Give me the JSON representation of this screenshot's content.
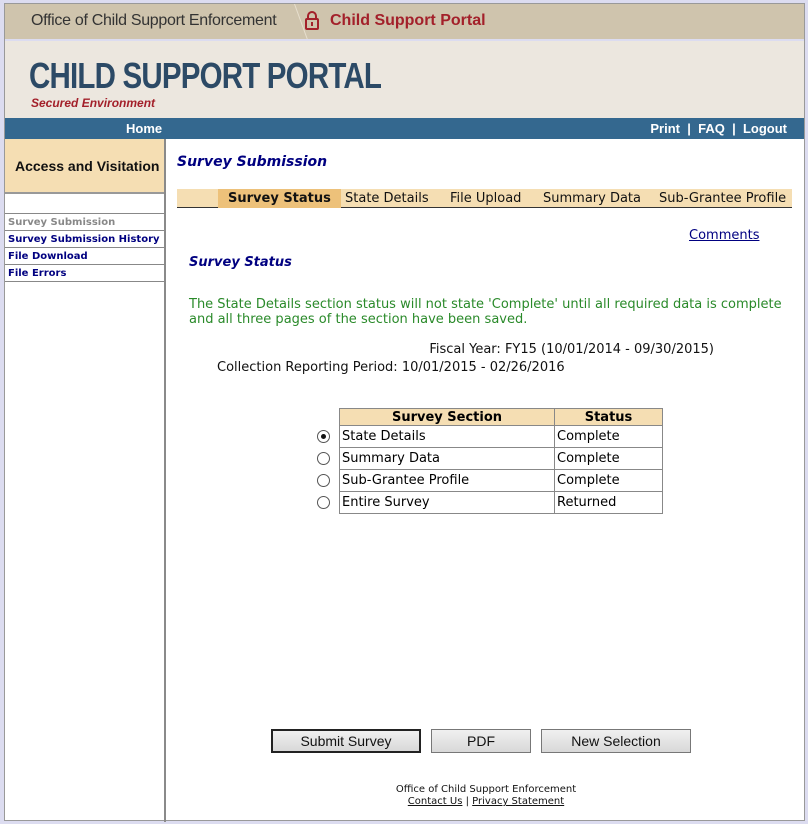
{
  "topbar": {
    "org": "Office of Child Support Enforcement",
    "portal": "Child Support Portal"
  },
  "banner": {
    "title": "CHILD SUPPORT PORTAL",
    "subtitle": "Secured Environment"
  },
  "nav": {
    "home": "Home",
    "print": "Print",
    "faq": "FAQ",
    "logout": "Logout",
    "sep": "|"
  },
  "sidebar": {
    "header": "Access and Visitation",
    "items": [
      {
        "label": "Survey Submission"
      },
      {
        "label": "Survey Submission History"
      },
      {
        "label": "File Download"
      },
      {
        "label": "File Errors"
      }
    ]
  },
  "main": {
    "title": "Survey Submission",
    "tabs": [
      {
        "label": "Survey Status"
      },
      {
        "label": "State Details"
      },
      {
        "label": "File Upload"
      },
      {
        "label": "Summary Data"
      },
      {
        "label": "Sub-Grantee Profile"
      }
    ],
    "comments": "Comments",
    "section_title": "Survey Status",
    "message": "The State Details section status will not state 'Complete' until all required data is complete and all three pages of the section have been saved.",
    "fiscal_year_label": "Fiscal Year:",
    "fiscal_year": "FY15 (10/01/2014 - 09/30/2015)",
    "period_label": "Collection Reporting Period:",
    "period": "10/01/2015 - 02/26/2016",
    "table": {
      "headers": [
        "Survey Section",
        "Status"
      ],
      "rows": [
        {
          "section": "State Details",
          "status": "Complete",
          "selected": true
        },
        {
          "section": "Summary Data",
          "status": "Complete",
          "selected": false
        },
        {
          "section": "Sub-Grantee Profile",
          "status": "Complete",
          "selected": false
        },
        {
          "section": "Entire Survey",
          "status": "Returned",
          "selected": false
        }
      ]
    },
    "buttons": {
      "submit": "Submit Survey",
      "pdf": "PDF",
      "new": "New Selection"
    }
  },
  "footer": {
    "org": "Office of Child Support Enforcement",
    "contact": "Contact Us",
    "sep": "|",
    "privacy": "Privacy Statement"
  },
  "colors": {
    "nav": "#34688f",
    "tab_bg": "#f5deb3",
    "active_tab": "#edc17a",
    "brand_red": "#a3202a",
    "link": "#000080",
    "message": "#2a8a2a"
  }
}
